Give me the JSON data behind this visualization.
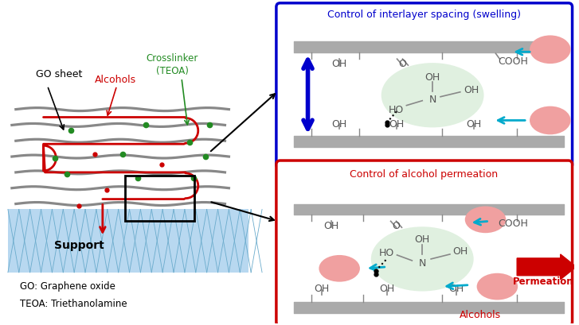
{
  "fig_width": 7.27,
  "fig_height": 4.1,
  "bg_color": "#ffffff",
  "left_panel": {
    "go_sheet_label": "GO sheet",
    "alcohols_label": "Alcohols",
    "crosslinker_label": "Crosslinker\n(TEOA)",
    "support_label": "Support",
    "go_label": "GO: Graphene oxide",
    "teoa_label": "TEOA: Triethanolamine",
    "sheet_color": "#888888",
    "alcohol_color": "#cc0000",
    "crosslinker_color": "#228B22",
    "support_color": "#b8d8f0",
    "support_line_color": "#6aabcc"
  },
  "top_right_panel": {
    "title": "Control of interlayer spacing (swelling)",
    "title_color": "#0000cc",
    "border_color": "#0000cc",
    "teoa_bg": "#e0f0e0",
    "bar_color": "#aaaaaa",
    "chem_color": "#555555",
    "line_color": "#888888",
    "blue_arrow_color": "#0000cc",
    "cyan_color": "#00aacc",
    "ellipse_color": "#f0a0a0"
  },
  "bottom_right_panel": {
    "title": "Control of alcohol permeation",
    "title_color": "#cc0000",
    "border_color": "#cc0000",
    "teoa_bg": "#e0f0e0",
    "bar_color": "#aaaaaa",
    "chem_color": "#555555",
    "line_color": "#888888",
    "cyan_color": "#00aacc",
    "ellipse_color": "#f0a0a0",
    "permeation_label": "Permeation",
    "alcohols_label": "Alcohols",
    "red_color": "#cc0000"
  }
}
